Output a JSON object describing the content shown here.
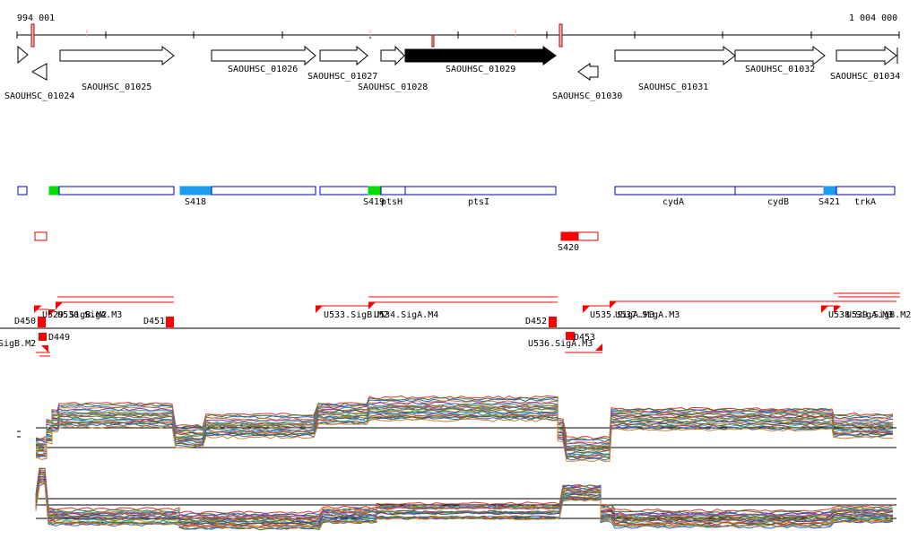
{
  "axis": {
    "start_label": "994 001",
    "end_label": "1 004 000"
  },
  "genes": [
    {
      "label": "SAOUHSC_01024",
      "strand": "-",
      "highlighted": false
    },
    {
      "label": "SAOUHSC_01025",
      "strand": "+",
      "highlighted": false
    },
    {
      "label": "SAOUHSC_01026",
      "strand": "+",
      "highlighted": false
    },
    {
      "label": "SAOUHSC_01027",
      "strand": "+",
      "highlighted": false
    },
    {
      "label": "SAOUHSC_01028",
      "strand": "+",
      "highlighted": false
    },
    {
      "label": "SAOUHSC_01029",
      "strand": "+",
      "highlighted": true
    },
    {
      "label": "SAOUHSC_01030",
      "strand": "-",
      "highlighted": false
    },
    {
      "label": "SAOUHSC_01031",
      "strand": "+",
      "highlighted": false
    },
    {
      "label": "SAOUHSC_01032",
      "strand": "+",
      "highlighted": false
    },
    {
      "label": "SAOUHSC_01034",
      "strand": "+",
      "highlighted": false
    }
  ],
  "operon_labels": {
    "s418": "S418",
    "s419": "S419",
    "ptsh": "ptsH",
    "ptsi": "ptsI",
    "cyda": "cydA",
    "cydb": "cydB",
    "s421": "S421",
    "trka": "trkA",
    "s420": "S420"
  },
  "feature_labels": {
    "d450": "D450",
    "d449": "D449",
    "u529": "U529.SigB.M2",
    "u530": "U530.SigA.M3",
    "d451": "D451",
    "u533": "U533.SigB.M2",
    "u534": "U534.SigA.M4",
    "d452": "D452",
    "u535": "U535.SigA.M3",
    "u537": "U537.SigA.M3",
    "d453": "D453",
    "u536": "U536.SigA.M3",
    "u538": "U538.SigA.M3",
    "u539": "U539.SigB.M2",
    "left_cut": "SigB.M2"
  },
  "colors": {
    "highlight_gene": "#000000",
    "operon_border": "#0000cc",
    "operon_green": "#00dd00",
    "operon_blue": "#1e9cf0",
    "feature_red": "#ff0000",
    "axis_marker": "#aa0000"
  }
}
